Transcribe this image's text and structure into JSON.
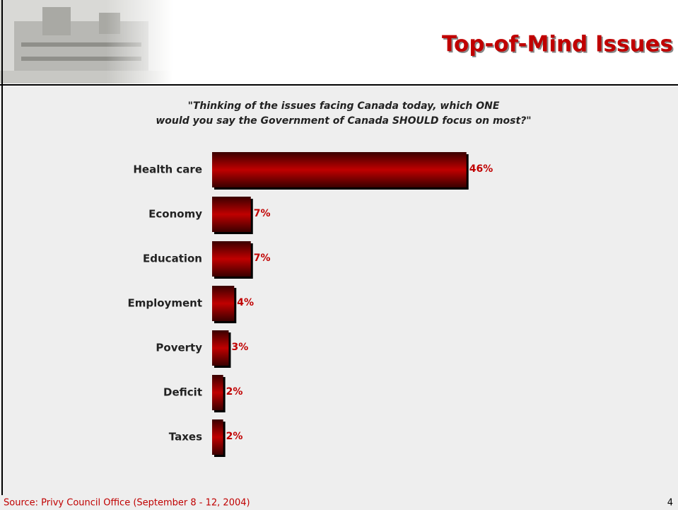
{
  "chart_data": {
    "type": "bar",
    "orientation": "horizontal",
    "title": "Top-of-Mind Issues",
    "subtitle": [
      "\"Thinking of the issues facing Canada today, which ONE",
      "would you say the Government of Canada SHOULD focus on most?\""
    ],
    "categories": [
      "Health care",
      "Economy",
      "Education",
      "Employment",
      "Poverty",
      "Deficit",
      "Taxes"
    ],
    "values": [
      46,
      7,
      7,
      4,
      3,
      2,
      2
    ],
    "value_labels": [
      "46%",
      "7%",
      "7%",
      "4%",
      "3%",
      "2%",
      "2%"
    ],
    "color": "#c00000",
    "source": "Source: Privy Council Office (September 8 - 12, 2004)",
    "page_number": "4"
  }
}
